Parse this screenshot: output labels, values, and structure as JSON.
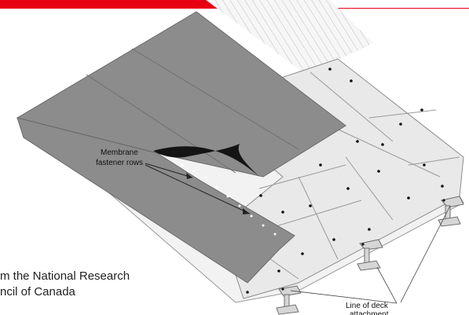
{
  "header": {
    "accent_color": "#e60012"
  },
  "diagram": {
    "membrane_label_line1": "Membrane",
    "membrane_label_line2": "fastener rows",
    "deck_label_line1": "Line of deck",
    "deck_label_line2": "attachment",
    "colors": {
      "membrane": "#8c8c8c",
      "insulation": "#e9e9e9",
      "deck": "#f4f4f4",
      "fold": "#141414",
      "fastener": "#111111"
    }
  },
  "credit": {
    "line1": "m the National Research",
    "line2": "ncil of Canada"
  }
}
